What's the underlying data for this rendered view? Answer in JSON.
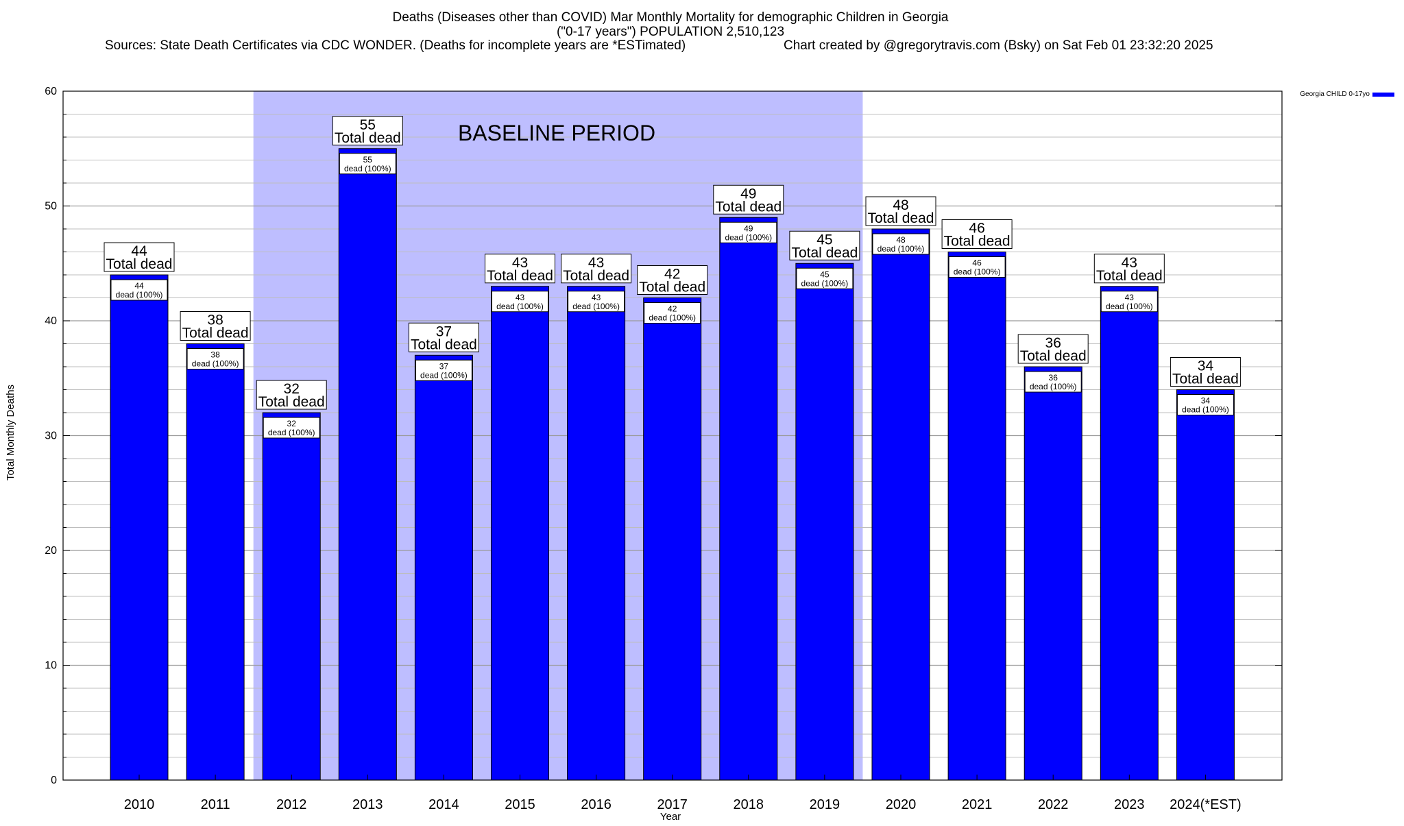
{
  "header": {
    "line1": "Deaths (Diseases other than COVID) Mar Monthly Mortality for demographic Children in Georgia",
    "line2": "(\"0-17 years\") POPULATION 2,510,123",
    "sources": "Sources: State Death Certificates via CDC WONDER. (Deaths for incomplete years are *ESTimated)",
    "credit": "Chart created by @gregorytravis.com (Bsky) on Sat Feb 01 23:32:20 2025"
  },
  "chart_data": {
    "type": "bar",
    "title": "Deaths (Diseases other than COVID) Mar Monthly Mortality for demographic Children in Georgia",
    "xlabel": "Year",
    "ylabel": "Total Monthly Deaths",
    "ylim": [
      0,
      60
    ],
    "yticks": [
      0,
      10,
      20,
      30,
      40,
      50,
      60
    ],
    "grid": true,
    "legend_position": "top-right",
    "categories": [
      "2010",
      "2011",
      "2012",
      "2013",
      "2014",
      "2015",
      "2016",
      "2017",
      "2018",
      "2019",
      "2020",
      "2021",
      "2022",
      "2023",
      "2024(*EST)"
    ],
    "series": [
      {
        "name": "Georgia CHILD 0-17yo",
        "color": "#0000ff",
        "values": [
          44,
          38,
          32,
          55,
          37,
          43,
          43,
          42,
          49,
          45,
          48,
          46,
          36,
          43,
          34
        ]
      }
    ],
    "bar_label_total": "Total dead",
    "bar_label_share": "dead (100%)",
    "baseline_period": {
      "label": "BASELINE PERIOD",
      "start": "2012",
      "end": "2019",
      "color": "#bebeff"
    }
  }
}
